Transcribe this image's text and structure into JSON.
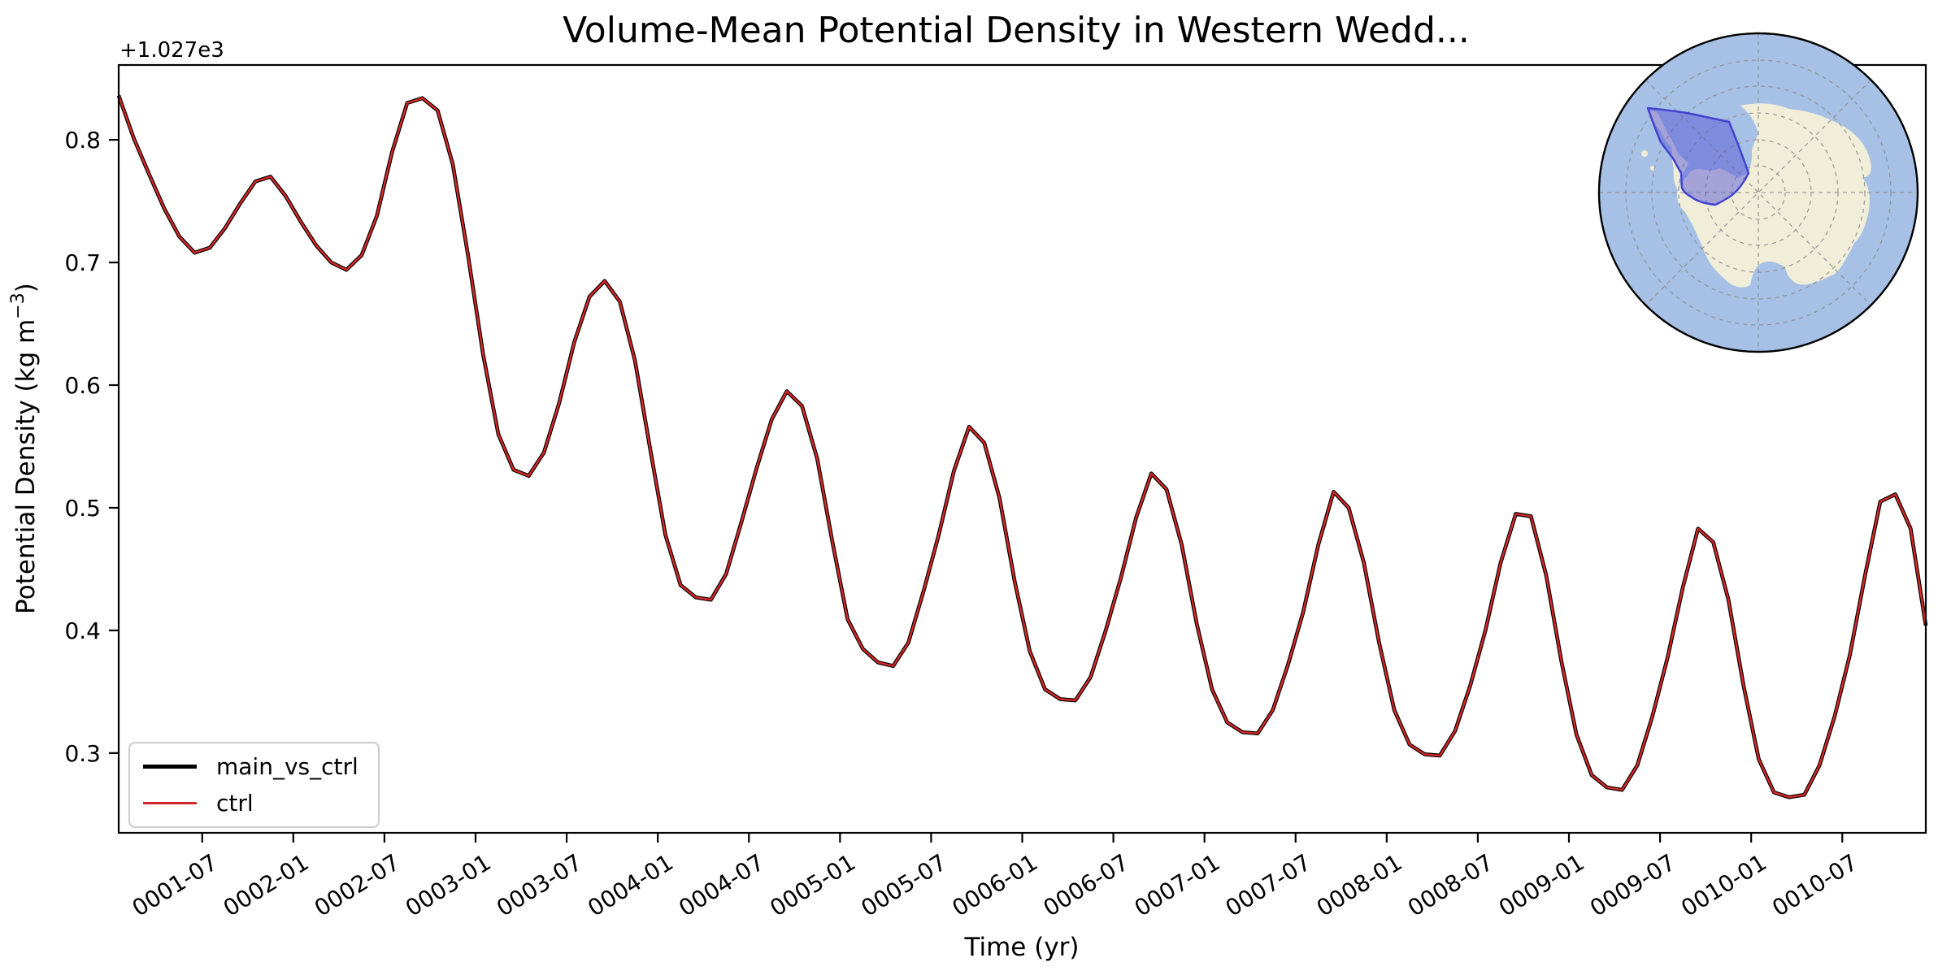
{
  "figure": {
    "ylabel_pre": "Potential Density (kg m",
    "ylabel_sup": "−3",
    "ylabel_post": ")"
  },
  "legend": {
    "items": [
      {
        "label": "main_vs_ctrl",
        "color": "#000000",
        "linewidth": 5
      },
      {
        "label": "ctrl",
        "color": "#d62728",
        "linewidth": 2.4
      }
    ]
  },
  "chart_data": {
    "type": "line",
    "title": "Volume-Mean Potential Density in Western Wedd...",
    "xlabel": "Time (yr)",
    "ylabel": "Potential Density (kg m⁻³)",
    "y_axis_offset_label": "+1.027e3",
    "y_offset_value": 1027,
    "x_start": "0001-01",
    "x_end": "0010-12",
    "x_freq": "monthly",
    "ylim": [
      0.235,
      0.861
    ],
    "grid": false,
    "legend_position": "lower left",
    "x_ticks": [
      {
        "label": "0001-07",
        "month_index": 5.5
      },
      {
        "label": "0002-01",
        "month_index": 11.5
      },
      {
        "label": "0002-07",
        "month_index": 17.5
      },
      {
        "label": "0003-01",
        "month_index": 23.5
      },
      {
        "label": "0003-07",
        "month_index": 29.5
      },
      {
        "label": "0004-01",
        "month_index": 35.5
      },
      {
        "label": "0004-07",
        "month_index": 41.5
      },
      {
        "label": "0005-01",
        "month_index": 47.5
      },
      {
        "label": "0005-07",
        "month_index": 53.5
      },
      {
        "label": "0006-01",
        "month_index": 59.5
      },
      {
        "label": "0006-07",
        "month_index": 65.5
      },
      {
        "label": "0007-01",
        "month_index": 71.5
      },
      {
        "label": "0007-07",
        "month_index": 77.5
      },
      {
        "label": "0008-01",
        "month_index": 83.5
      },
      {
        "label": "0008-07",
        "month_index": 89.5
      },
      {
        "label": "0009-01",
        "month_index": 95.5
      },
      {
        "label": "0009-07",
        "month_index": 101.5
      },
      {
        "label": "0010-01",
        "month_index": 107.5
      },
      {
        "label": "0010-07",
        "month_index": 113.5
      }
    ],
    "y_ticks": [
      {
        "label": "0.3",
        "value": 0.3
      },
      {
        "label": "0.4",
        "value": 0.4
      },
      {
        "label": "0.5",
        "value": 0.5
      },
      {
        "label": "0.6",
        "value": 0.6
      },
      {
        "label": "0.7",
        "value": 0.7
      },
      {
        "label": "0.8",
        "value": 0.8
      }
    ],
    "series": [
      {
        "name": "main_vs_ctrl",
        "color": "#000000",
        "linewidth": 4.7
      },
      {
        "name": "ctrl",
        "color": "#d62728",
        "linewidth": 2.4
      }
    ],
    "series_note": "Both series plot visually identical values (red ctrl curve drawn on top of thick black main_vs_ctrl curve).",
    "values": [
      0.836,
      0.801,
      0.772,
      0.744,
      0.721,
      0.708,
      0.712,
      0.728,
      0.748,
      0.766,
      0.77,
      0.754,
      0.733,
      0.714,
      0.7,
      0.694,
      0.706,
      0.738,
      0.79,
      0.83,
      0.834,
      0.824,
      0.78,
      0.706,
      0.625,
      0.56,
      0.531,
      0.526,
      0.545,
      0.585,
      0.635,
      0.672,
      0.685,
      0.668,
      0.62,
      0.548,
      0.478,
      0.437,
      0.427,
      0.425,
      0.446,
      0.488,
      0.532,
      0.572,
      0.595,
      0.583,
      0.54,
      0.472,
      0.409,
      0.385,
      0.374,
      0.371,
      0.39,
      0.432,
      0.478,
      0.53,
      0.566,
      0.553,
      0.508,
      0.44,
      0.383,
      0.352,
      0.344,
      0.343,
      0.362,
      0.4,
      0.443,
      0.492,
      0.528,
      0.515,
      0.47,
      0.405,
      0.352,
      0.325,
      0.317,
      0.316,
      0.335,
      0.372,
      0.415,
      0.47,
      0.513,
      0.5,
      0.455,
      0.39,
      0.335,
      0.307,
      0.299,
      0.298,
      0.318,
      0.355,
      0.4,
      0.455,
      0.495,
      0.493,
      0.445,
      0.375,
      0.315,
      0.282,
      0.272,
      0.27,
      0.29,
      0.33,
      0.378,
      0.435,
      0.483,
      0.472,
      0.425,
      0.355,
      0.295,
      0.268,
      0.264,
      0.266,
      0.29,
      0.33,
      0.38,
      0.445,
      0.505,
      0.511,
      0.483,
      0.404
    ],
    "inset_map": {
      "projection": "south-polar-stereographic",
      "highlighted_region": "western-weddell-sea",
      "colors": {
        "ocean": "#a6c1e5",
        "land": "#f0edd8",
        "region_fill": "#5858d6",
        "region_outline": "#4343cf",
        "graticule": "#8f8f8f",
        "border": "#000000"
      }
    }
  }
}
